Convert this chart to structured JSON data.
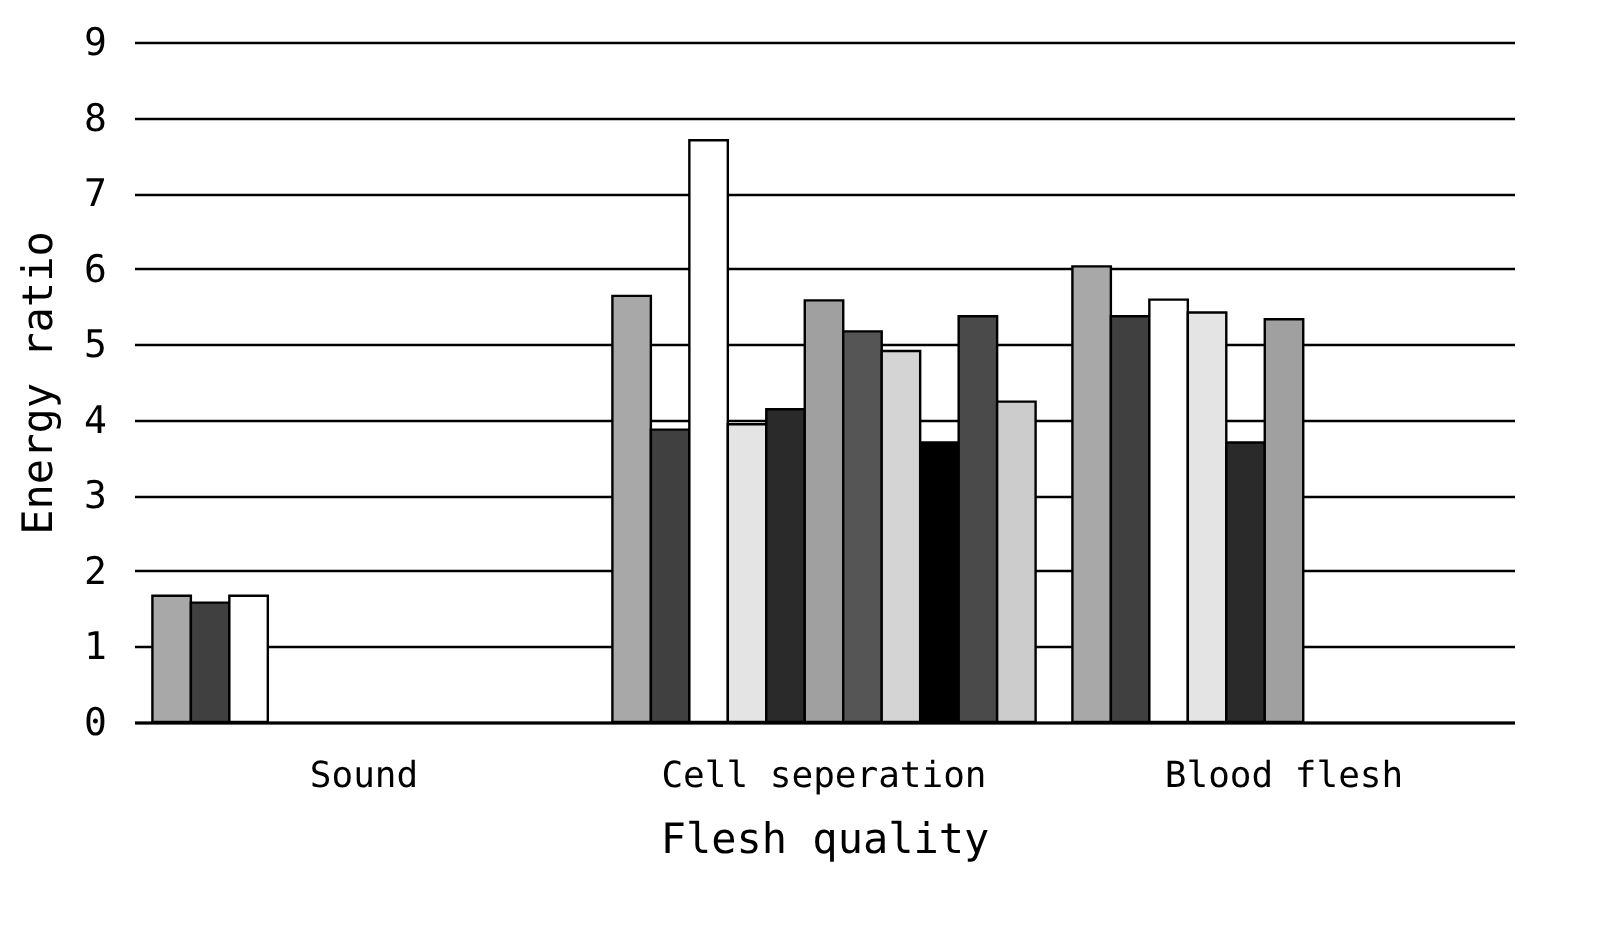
{
  "chart_data": {
    "type": "bar",
    "xlabel": "Flesh quality",
    "ylabel": "Energy ratio",
    "categories": [
      "Sound",
      "Cell seperation",
      "Blood flesh"
    ],
    "series": [
      {
        "color": "#a8a8a8",
        "values": [
          1.67,
          5.64,
          6.03
        ]
      },
      {
        "color": "#404040",
        "values": [
          1.58,
          3.87,
          5.37
        ]
      },
      {
        "color": "#ffffff",
        "values": [
          1.67,
          7.7,
          5.59
        ]
      },
      {
        "color": "#e4e4e4",
        "values": [
          null,
          3.94,
          5.42
        ]
      },
      {
        "color": "#2a2a2a",
        "values": [
          null,
          4.14,
          3.7
        ]
      },
      {
        "color": "#a0a0a0",
        "values": [
          null,
          5.58,
          5.33
        ]
      },
      {
        "color": "#555555",
        "values": [
          null,
          5.17,
          null
        ]
      },
      {
        "color": "#d4d4d4",
        "values": [
          null,
          4.91,
          null
        ]
      },
      {
        "color": "#000000",
        "values": [
          null,
          3.7,
          null
        ]
      },
      {
        "color": "#4a4a4a",
        "values": [
          null,
          5.37,
          null
        ]
      },
      {
        "color": "#cccccc",
        "values": [
          null,
          4.24,
          null
        ]
      }
    ],
    "ylim": [
      0,
      9
    ],
    "yticks": [
      0,
      1,
      2,
      3,
      4,
      5,
      6,
      7,
      8,
      9
    ],
    "grid": "y",
    "legend": false
  }
}
